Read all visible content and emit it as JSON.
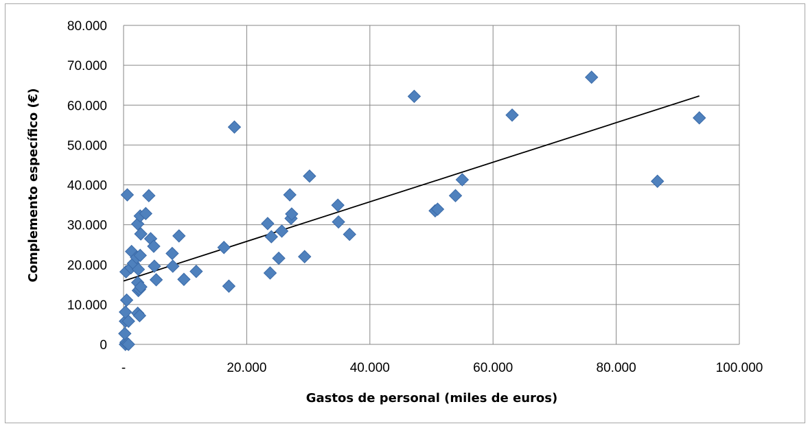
{
  "chart_data": {
    "type": "scatter",
    "title": "",
    "xlabel": "Gastos de personal (miles de euros)",
    "ylabel": "Complemento específico (€)",
    "xlim": [
      0,
      100000
    ],
    "ylim": [
      0,
      80000
    ],
    "x_ticks": [
      0,
      20000,
      40000,
      60000,
      80000,
      100000
    ],
    "x_tick_labels": [
      "-",
      "20.000",
      "40.000",
      "60.000",
      "80.000",
      "100.000"
    ],
    "y_ticks": [
      0,
      10000,
      20000,
      30000,
      40000,
      50000,
      60000,
      70000,
      80000
    ],
    "y_tick_labels": [
      "0",
      "10.000",
      "20.000",
      "30.000",
      "40.000",
      "50.000",
      "60.000",
      "70.000",
      "80.000"
    ],
    "grid": true,
    "legend": "none",
    "marker": "diamond",
    "colors": {
      "marker_fill": "#4f81bd",
      "marker_stroke": "#3a6aa8",
      "trendline": "#000000",
      "grid": "#868686"
    },
    "series": [
      {
        "points": [
          [
            300,
            0
          ],
          [
            400,
            500
          ],
          [
            600,
            200
          ],
          [
            800,
            0
          ],
          [
            200,
            2700
          ],
          [
            300,
            5800
          ],
          [
            800,
            5800
          ],
          [
            300,
            8100
          ],
          [
            500,
            11100
          ],
          [
            2300,
            7800
          ],
          [
            2600,
            7200
          ],
          [
            600,
            37500
          ],
          [
            400,
            18200
          ],
          [
            1200,
            19200
          ],
          [
            1300,
            23300
          ],
          [
            1600,
            20300
          ],
          [
            2100,
            21800
          ],
          [
            2400,
            18800
          ],
          [
            2700,
            22300
          ],
          [
            2300,
            15500
          ],
          [
            2400,
            13500
          ],
          [
            2600,
            13800
          ],
          [
            2800,
            14400
          ],
          [
            2300,
            30200
          ],
          [
            2700,
            32200
          ],
          [
            2800,
            27700
          ],
          [
            3600,
            32800
          ],
          [
            4400,
            26500
          ],
          [
            4100,
            37300
          ],
          [
            4900,
            24600
          ],
          [
            5000,
            19600
          ],
          [
            5300,
            16200
          ],
          [
            7900,
            22800
          ],
          [
            8000,
            19600
          ],
          [
            9000,
            27200
          ],
          [
            9800,
            16300
          ],
          [
            11800,
            18300
          ],
          [
            16300,
            24300
          ],
          [
            17100,
            14600
          ],
          [
            18000,
            54500
          ],
          [
            23400,
            30300
          ],
          [
            23800,
            17900
          ],
          [
            24000,
            27000
          ],
          [
            25200,
            21600
          ],
          [
            25700,
            28400
          ],
          [
            27000,
            37500
          ],
          [
            27200,
            31600
          ],
          [
            27300,
            32700
          ],
          [
            29400,
            22000
          ],
          [
            30200,
            42200
          ],
          [
            34800,
            34900
          ],
          [
            34900,
            30700
          ],
          [
            36700,
            27600
          ],
          [
            47200,
            62200
          ],
          [
            50600,
            33500
          ],
          [
            51000,
            33900
          ],
          [
            53900,
            37300
          ],
          [
            55000,
            41300
          ],
          [
            63100,
            57500
          ],
          [
            76000,
            67000
          ],
          [
            86700,
            40900
          ],
          [
            93500,
            56800
          ]
        ]
      }
    ],
    "trendline": {
      "type": "linear",
      "x": [
        0,
        93500
      ],
      "y": [
        15900,
        62300
      ]
    }
  }
}
